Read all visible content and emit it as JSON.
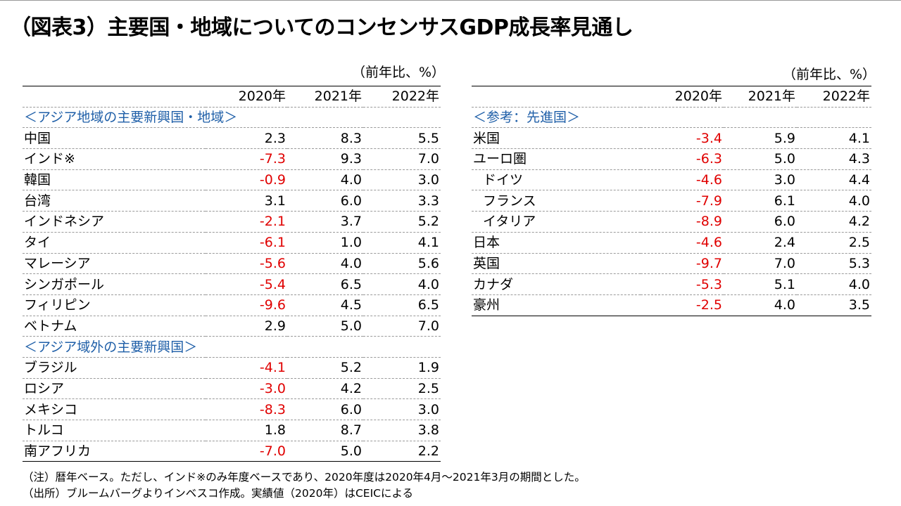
{
  "title": "（図表3）主要国・地域についてのコンセンサスGDP成長率見通し",
  "unit_label": "（前年比、%）",
  "years": [
    "2020年",
    "2021年",
    "2022年"
  ],
  "left_table": {
    "sections": [
      {
        "heading": "＜アジア地域の主要新興国・地域＞",
        "rows": [
          {
            "name": "中国",
            "v2020": "2.3",
            "v2021": "8.3",
            "v2022": "5.5"
          },
          {
            "name": "インド※",
            "v2020": "-7.3",
            "v2021": "9.3",
            "v2022": "7.0"
          },
          {
            "name": "韓国",
            "v2020": "-0.9",
            "v2021": "4.0",
            "v2022": "3.0"
          },
          {
            "name": "台湾",
            "v2020": "3.1",
            "v2021": "6.0",
            "v2022": "3.3"
          },
          {
            "name": "インドネシア",
            "v2020": "-2.1",
            "v2021": "3.7",
            "v2022": "5.2"
          },
          {
            "name": "タイ",
            "v2020": "-6.1",
            "v2021": "1.0",
            "v2022": "4.1"
          },
          {
            "name": "マレーシア",
            "v2020": "-5.6",
            "v2021": "4.0",
            "v2022": "5.6"
          },
          {
            "name": "シンガポール",
            "v2020": "-5.4",
            "v2021": "6.5",
            "v2022": "4.0"
          },
          {
            "name": "フィリピン",
            "v2020": "-9.6",
            "v2021": "4.5",
            "v2022": "6.5"
          },
          {
            "name": "ベトナム",
            "v2020": "2.9",
            "v2021": "5.0",
            "v2022": "7.0"
          }
        ]
      },
      {
        "heading": "＜アジア域外の主要新興国＞",
        "rows": [
          {
            "name": "ブラジル",
            "v2020": "-4.1",
            "v2021": "5.2",
            "v2022": "1.9"
          },
          {
            "name": "ロシア",
            "v2020": "-3.0",
            "v2021": "4.2",
            "v2022": "2.5"
          },
          {
            "name": "メキシコ",
            "v2020": "-8.3",
            "v2021": "6.0",
            "v2022": "3.0"
          },
          {
            "name": "トルコ",
            "v2020": "1.8",
            "v2021": "8.7",
            "v2022": "3.8"
          },
          {
            "name": "南アフリカ",
            "v2020": "-7.0",
            "v2021": "5.0",
            "v2022": "2.2"
          }
        ]
      }
    ]
  },
  "right_table": {
    "sections": [
      {
        "heading": "＜参考：先進国＞",
        "rows": [
          {
            "name": "米国",
            "v2020": "-3.4",
            "v2021": "5.9",
            "v2022": "4.1"
          },
          {
            "name": "ユーロ圏",
            "v2020": "-6.3",
            "v2021": "5.0",
            "v2022": "4.3"
          },
          {
            "name": "ドイツ",
            "v2020": "-4.6",
            "v2021": "3.0",
            "v2022": "4.4",
            "indent": true
          },
          {
            "name": "フランス",
            "v2020": "-7.9",
            "v2021": "6.1",
            "v2022": "4.0",
            "indent": true
          },
          {
            "name": "イタリア",
            "v2020": "-8.9",
            "v2021": "6.0",
            "v2022": "4.2",
            "indent": true
          },
          {
            "name": "日本",
            "v2020": "-4.6",
            "v2021": "2.4",
            "v2022": "2.5"
          },
          {
            "name": "英国",
            "v2020": "-9.7",
            "v2021": "7.0",
            "v2022": "5.3"
          },
          {
            "name": "カナダ",
            "v2020": "-5.3",
            "v2021": "5.1",
            "v2022": "4.0"
          },
          {
            "name": "豪州",
            "v2020": "-2.5",
            "v2021": "4.0",
            "v2022": "3.5"
          }
        ]
      }
    ]
  },
  "notes": [
    "（注）暦年ベース。ただし、インド※のみ年度ベースであり、2020年度は2020年4月～2021年3月の期間とした。",
    "（出所）ブルームバーグよりインベスコ作成。実績値（2020年）はCEICによる"
  ],
  "colors": {
    "negative": "#e00000",
    "section_heading": "#1f5fa8"
  }
}
